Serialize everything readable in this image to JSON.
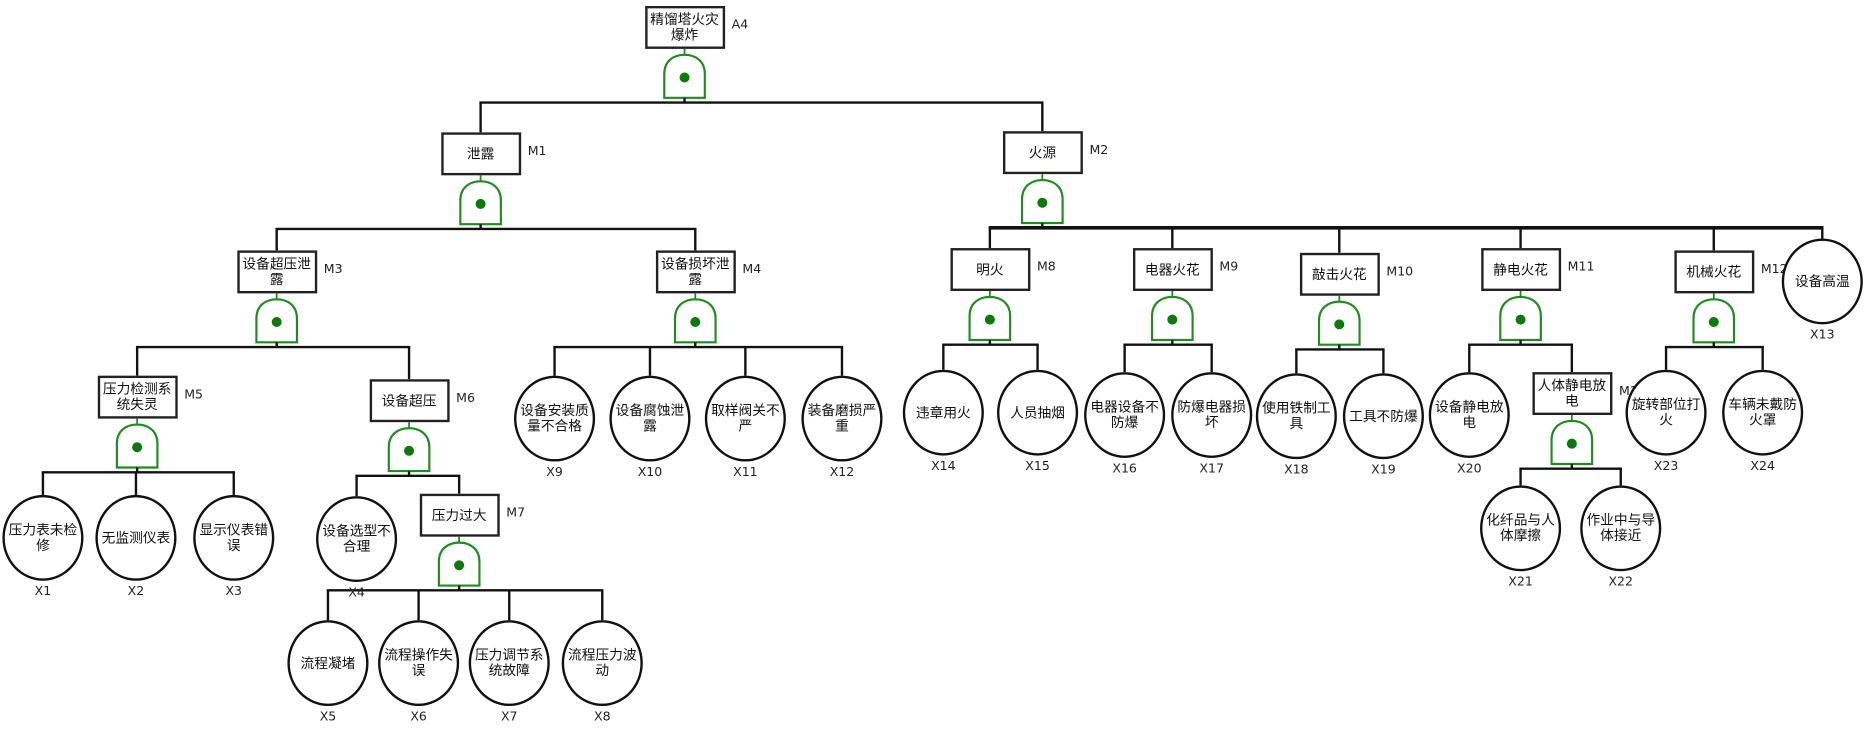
{
  "diagram": {
    "gate_type": "AND",
    "colors": {
      "gate": "#1e8c1e",
      "gate_dot": "#0b7a0b",
      "line": "#111111"
    },
    "intermediate_events": [
      {
        "code": "A4",
        "label": "精馏塔火灾爆炸",
        "children": [
          "M1",
          "M2"
        ]
      },
      {
        "code": "M1",
        "label": "泄露",
        "children": [
          "M3",
          "M4"
        ]
      },
      {
        "code": "M2",
        "label": "火源",
        "children": [
          "M8",
          "M9",
          "M10",
          "M11",
          "M12",
          "X13"
        ]
      },
      {
        "code": "M3",
        "label": "设备超压泄露",
        "children": [
          "M5",
          "M6"
        ]
      },
      {
        "code": "M4",
        "label": "设备损坏泄露",
        "children": [
          "X9",
          "X10",
          "X11",
          "X12"
        ]
      },
      {
        "code": "M5",
        "label": "压力检测系统失灵",
        "children": [
          "X1",
          "X2",
          "X3"
        ]
      },
      {
        "code": "M6",
        "label": "设备超压",
        "children": [
          "X4",
          "M7"
        ]
      },
      {
        "code": "M7",
        "label": "压力过大",
        "children": [
          "X5",
          "X6",
          "X7",
          "X8"
        ]
      },
      {
        "code": "M8",
        "label": "明火",
        "children": [
          "X14",
          "X15"
        ]
      },
      {
        "code": "M9",
        "label": "电器火花",
        "children": [
          "X16",
          "X17"
        ]
      },
      {
        "code": "M10",
        "label": "敲击火花",
        "children": [
          "X18",
          "X19"
        ]
      },
      {
        "code": "M11",
        "label": "静电火花",
        "children": [
          "X20",
          "M13"
        ]
      },
      {
        "code": "M12",
        "label": "机械火花",
        "children": [
          "X23",
          "X24"
        ]
      },
      {
        "code": "M13",
        "label": "人体静电放电",
        "children": [
          "X21",
          "X22"
        ]
      }
    ],
    "basic_events": [
      {
        "code": "X1",
        "label": "压力表未检修"
      },
      {
        "code": "X2",
        "label": "无监测仪表"
      },
      {
        "code": "X3",
        "label": "显示仪表错误"
      },
      {
        "code": "X4",
        "label": "设备选型不合理"
      },
      {
        "code": "X5",
        "label": "流程凝堵"
      },
      {
        "code": "X6",
        "label": "流程操作失误"
      },
      {
        "code": "X7",
        "label": "压力调节系统故障"
      },
      {
        "code": "X8",
        "label": "流程压力波动"
      },
      {
        "code": "X9",
        "label": "设备安装质量不合格"
      },
      {
        "code": "X10",
        "label": "设备腐蚀泄露"
      },
      {
        "code": "X11",
        "label": "取样阀关不严"
      },
      {
        "code": "X12",
        "label": "装备磨损严重"
      },
      {
        "code": "X13",
        "label": "设备高温"
      },
      {
        "code": "X14",
        "label": "违章用火"
      },
      {
        "code": "X15",
        "label": "人员抽烟"
      },
      {
        "code": "X16",
        "label": "电器设备不防爆"
      },
      {
        "code": "X17",
        "label": "防爆电器损坏"
      },
      {
        "code": "X18",
        "label": "使用铁制工具"
      },
      {
        "code": "X19",
        "label": "工具不防爆"
      },
      {
        "code": "X20",
        "label": "设备静电放电"
      },
      {
        "code": "X21",
        "label": "化纤品与人体摩擦"
      },
      {
        "code": "X22",
        "label": "作业中与导体接近"
      },
      {
        "code": "X23",
        "label": "旋转部位打火"
      },
      {
        "code": "X24",
        "label": "车辆未戴防火罩"
      }
    ]
  }
}
